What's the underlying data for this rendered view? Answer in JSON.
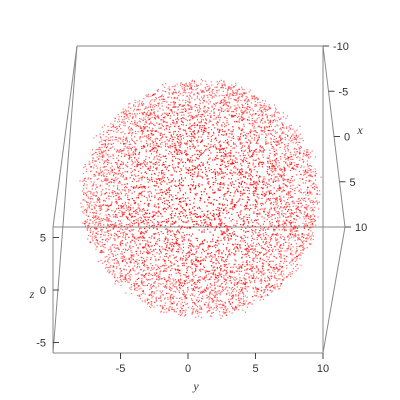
{
  "chart_data": {
    "type": "scatter",
    "title": "",
    "description_shape": "ball",
    "marker_color": "#ff0000",
    "box_color": "#8a8a8a",
    "points_count_visible": "dense",
    "axes": {
      "x": {
        "label": "x",
        "range": [
          -10,
          10
        ],
        "ticks": [
          "-10",
          "-5",
          "0",
          "5",
          "10"
        ],
        "tick_values": [
          -10,
          -5,
          0,
          5,
          10
        ]
      },
      "y": {
        "label": "y",
        "range": [
          -10,
          10
        ],
        "ticks": [
          "-5",
          "0",
          "5",
          "10"
        ],
        "tick_values": [
          -5,
          0,
          5,
          10
        ]
      },
      "z": {
        "label": "z",
        "range": [
          -6,
          6
        ],
        "ticks": [
          "-5",
          "0",
          "5"
        ],
        "tick_values": [
          -5,
          0,
          5
        ]
      }
    },
    "series": [
      {
        "distribution": "gaussian-ball",
        "center": [
          0,
          0,
          0
        ],
        "radius_data_units": 9
      }
    ]
  }
}
